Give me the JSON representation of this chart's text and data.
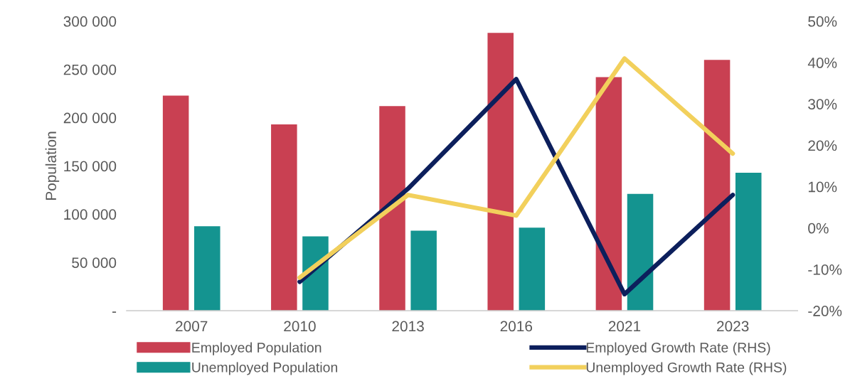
{
  "chart_data": {
    "type": "bar",
    "ylabel": "Population",
    "categories": [
      "2007",
      "2010",
      "2013",
      "2016",
      "2021",
      "2023"
    ],
    "series": [
      {
        "name": "Employed Population",
        "color": "#c94052",
        "values": [
          223000,
          193000,
          212000,
          288000,
          242000,
          260000
        ]
      },
      {
        "name": "Unemployed Population",
        "color": "#149490",
        "values": [
          87500,
          77000,
          83000,
          86000,
          121000,
          143000
        ]
      },
      {
        "name": "Employed Growth Rate (RHS)",
        "type": "line",
        "axis": "y2",
        "color": "#0c1f5c",
        "values": [
          null,
          -13,
          9.5,
          36,
          -16,
          8
        ]
      },
      {
        "name": "Unemployed Growth Rate (RHS)",
        "type": "line",
        "axis": "y2",
        "color": "#f2d05c",
        "values": [
          null,
          -12,
          8,
          3,
          41,
          18
        ]
      }
    ],
    "ylim": [
      0,
      300000
    ],
    "yticks": [
      {
        "value": 0,
        "label": "-"
      },
      {
        "value": 50000,
        "label": "50 000"
      },
      {
        "value": 100000,
        "label": "100 000"
      },
      {
        "value": 150000,
        "label": "150 000"
      },
      {
        "value": 200000,
        "label": "200 000"
      },
      {
        "value": 250000,
        "label": "250 000"
      },
      {
        "value": 300000,
        "label": "300 000"
      }
    ],
    "y2lim": [
      -20,
      50
    ],
    "y2ticks": [
      {
        "value": -20,
        "label": "-20%"
      },
      {
        "value": -10,
        "label": "-10%"
      },
      {
        "value": 0,
        "label": "0%"
      },
      {
        "value": 10,
        "label": "10%"
      },
      {
        "value": 20,
        "label": "20%"
      },
      {
        "value": 30,
        "label": "30%"
      },
      {
        "value": 40,
        "label": "40%"
      },
      {
        "value": 50,
        "label": "50%"
      }
    ],
    "grid": false,
    "legend": "bottom"
  }
}
